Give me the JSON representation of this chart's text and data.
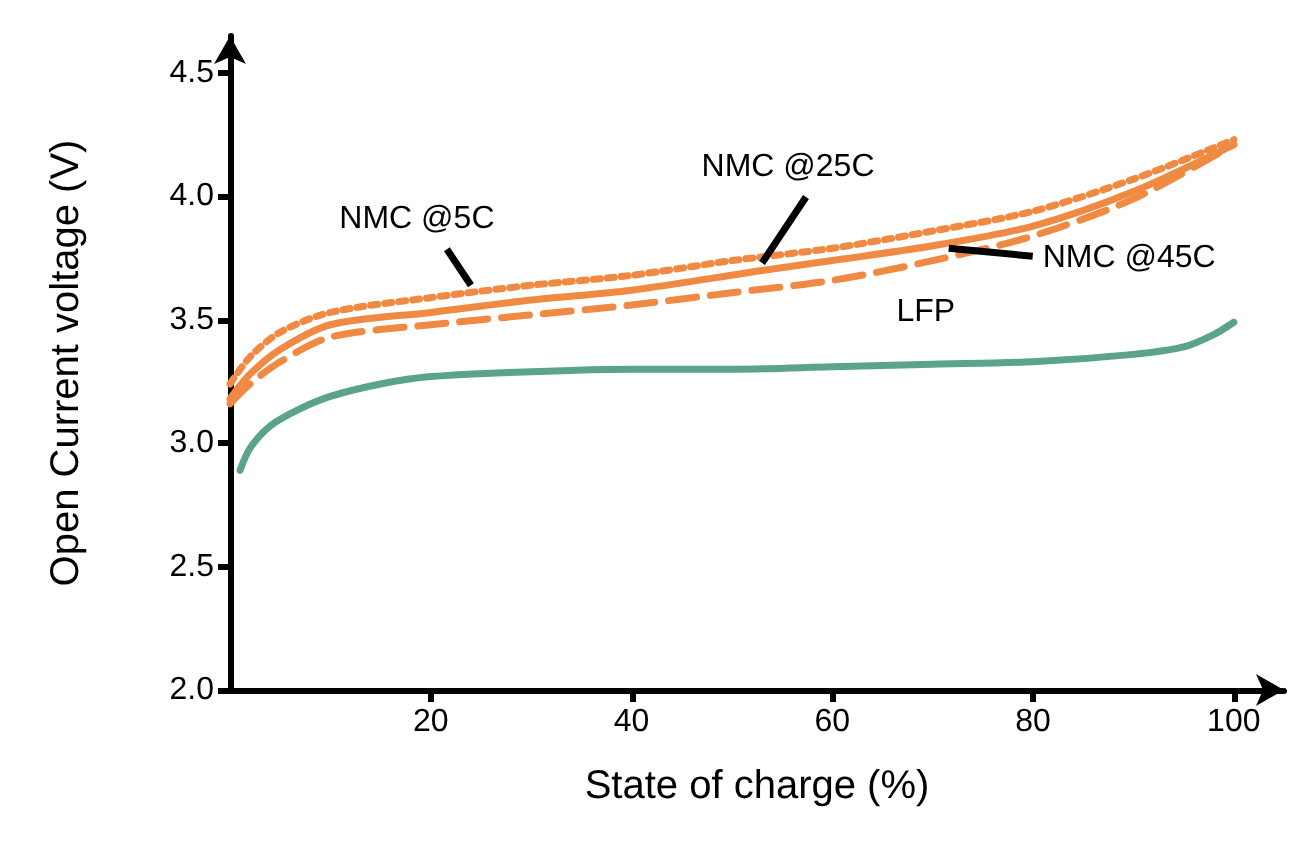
{
  "chart_data": {
    "type": "line",
    "xlabel": "State of charge (%)",
    "ylabel": "Open Current voltage (V)",
    "xlim": [
      0,
      105
    ],
    "xticks": [
      20,
      40,
      60,
      80,
      100
    ],
    "ylim": [
      2,
      4.65
    ],
    "yticks": [
      {
        "value": 2,
        "label": "2.0"
      },
      {
        "value": 2.5,
        "label": "2.5"
      },
      {
        "value": 3,
        "label": "3.0"
      },
      {
        "value": 3.5,
        "label": "3.5"
      },
      {
        "value": 4,
        "label": "4.0"
      },
      {
        "value": 4.5,
        "label": "4.5"
      }
    ],
    "grid": false,
    "marker": "none",
    "series": [
      {
        "name": "LFP",
        "color": "#5ba38b",
        "line_style": "solid",
        "x": [
          1,
          2,
          4,
          7,
          10,
          15,
          20,
          30,
          40,
          50,
          60,
          70,
          80,
          90,
          95,
          98,
          100
        ],
        "values": [
          2.89,
          2.98,
          3.07,
          3.14,
          3.19,
          3.24,
          3.27,
          3.29,
          3.3,
          3.3,
          3.31,
          3.32,
          3.33,
          3.36,
          3.39,
          3.44,
          3.49
        ]
      },
      {
        "color": "#f08a43",
        "line_style": "solid",
        "x": [
          0,
          2,
          5,
          10,
          20,
          30,
          40,
          53,
          60,
          70,
          80,
          90,
          100
        ],
        "values": [
          3.18,
          3.28,
          3.38,
          3.48,
          3.53,
          3.58,
          3.62,
          3.7,
          3.74,
          3.8,
          3.88,
          4.02,
          4.21
        ]
      },
      {
        "color": "#f08a43",
        "line_style": "dotted",
        "x": [
          0,
          2,
          5,
          10,
          20,
          30,
          40,
          50,
          60,
          70,
          80,
          90,
          100
        ],
        "values": [
          3.24,
          3.35,
          3.45,
          3.53,
          3.59,
          3.64,
          3.68,
          3.74,
          3.79,
          3.86,
          3.94,
          4.07,
          4.23
        ]
      },
      {
        "color": "#f08a43",
        "line_style": "dashed",
        "x": [
          0,
          2,
          5,
          10,
          20,
          30,
          40,
          50,
          60,
          70,
          80,
          90,
          100
        ],
        "values": [
          3.16,
          3.24,
          3.33,
          3.43,
          3.48,
          3.52,
          3.56,
          3.61,
          3.66,
          3.74,
          3.84,
          3.99,
          4.21
        ]
      }
    ],
    "annotations": [
      {
        "text": "NMC @5C",
        "x": 24,
        "y": 3.64
      },
      {
        "text": "NMC @25C",
        "x": 53,
        "y": 3.73
      },
      {
        "text": "NMC @45C",
        "x": 71.6,
        "y": 3.79
      }
    ]
  }
}
